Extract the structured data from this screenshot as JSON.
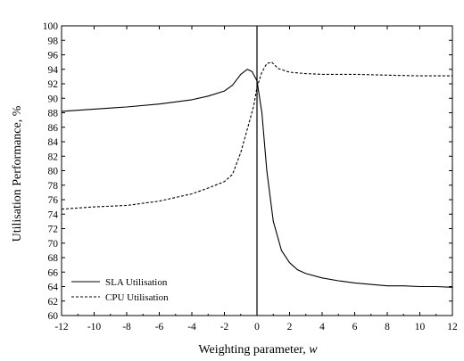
{
  "chart_data": {
    "type": "line",
    "xlabel": "Weighting parameter,",
    "xlabel_var": "w",
    "ylabel": "Utilisation Performance, %",
    "xlim": [
      -12,
      12
    ],
    "ylim": [
      60,
      100
    ],
    "x_ticks": [
      -12,
      -10,
      -8,
      -6,
      -4,
      -2,
      0,
      2,
      4,
      6,
      8,
      10,
      12
    ],
    "x_tick_labels": [
      "-12",
      "-10",
      "-8",
      "-6",
      "-4",
      "-2",
      "0",
      "2",
      "4",
      "6",
      "8",
      "10",
      "12"
    ],
    "y_ticks": [
      60,
      62,
      64,
      66,
      68,
      70,
      72,
      74,
      76,
      78,
      80,
      82,
      84,
      86,
      88,
      90,
      92,
      94,
      96,
      98,
      100
    ],
    "y_tick_labels": [
      "60",
      "62",
      "64",
      "66",
      "68",
      "70",
      "72",
      "74",
      "76",
      "78",
      "80",
      "82",
      "84",
      "86",
      "88",
      "90",
      "92",
      "94",
      "96",
      "98",
      "100"
    ],
    "vertical_reference_line_x": 0,
    "grid": false,
    "legend_position": "bottom-left",
    "series": [
      {
        "name": "SLA Utilisation",
        "style": "solid",
        "color": "#000000",
        "x": [
          -12,
          -10,
          -8,
          -6,
          -4,
          -3,
          -2,
          -1.5,
          -1,
          -0.6,
          -0.3,
          0,
          0.3,
          0.6,
          1,
          1.5,
          2,
          2.5,
          3,
          4,
          5,
          6,
          7,
          8,
          9,
          10,
          11,
          12
        ],
        "y": [
          88.2,
          88.5,
          88.8,
          89.2,
          89.8,
          90.3,
          91.0,
          91.8,
          93.3,
          94.0,
          93.7,
          92.4,
          88.0,
          80.0,
          73.0,
          69.0,
          67.3,
          66.3,
          65.8,
          65.2,
          64.8,
          64.5,
          64.3,
          64.1,
          64.1,
          64.0,
          64.0,
          63.9
        ]
      },
      {
        "name": "CPU Utilisation",
        "style": "dashed",
        "color": "#000000",
        "x": [
          -12,
          -10,
          -8,
          -6,
          -4,
          -3,
          -2,
          -1.5,
          -1,
          -0.5,
          -0.2,
          0,
          0.3,
          0.6,
          0.9,
          1.3,
          2,
          3,
          4,
          6,
          8,
          10,
          12
        ],
        "y": [
          74.7,
          75.0,
          75.2,
          75.8,
          76.8,
          77.6,
          78.5,
          79.5,
          82.5,
          86.5,
          89.0,
          91.5,
          93.6,
          94.8,
          95.0,
          94.1,
          93.6,
          93.4,
          93.3,
          93.3,
          93.2,
          93.1,
          93.1
        ]
      }
    ]
  }
}
